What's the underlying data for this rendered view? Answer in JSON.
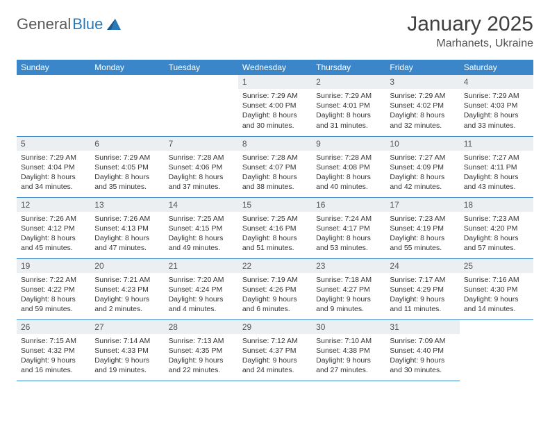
{
  "logo": {
    "general": "General",
    "blue": "Blue"
  },
  "title": "January 2025",
  "location": "Marhanets, Ukraine",
  "colors": {
    "header_bg": "#3a86c8",
    "header_text": "#ffffff",
    "daynum_bg": "#eceff1",
    "border": "#3a86c8",
    "logo_gray": "#5a5a5a",
    "logo_blue": "#2a7ab8"
  },
  "weekdays": [
    "Sunday",
    "Monday",
    "Tuesday",
    "Wednesday",
    "Thursday",
    "Friday",
    "Saturday"
  ],
  "leading_blanks": 3,
  "days": [
    {
      "n": "1",
      "sunrise": "7:29 AM",
      "sunset": "4:00 PM",
      "dl_h": "8",
      "dl_m": "30"
    },
    {
      "n": "2",
      "sunrise": "7:29 AM",
      "sunset": "4:01 PM",
      "dl_h": "8",
      "dl_m": "31"
    },
    {
      "n": "3",
      "sunrise": "7:29 AM",
      "sunset": "4:02 PM",
      "dl_h": "8",
      "dl_m": "32"
    },
    {
      "n": "4",
      "sunrise": "7:29 AM",
      "sunset": "4:03 PM",
      "dl_h": "8",
      "dl_m": "33"
    },
    {
      "n": "5",
      "sunrise": "7:29 AM",
      "sunset": "4:04 PM",
      "dl_h": "8",
      "dl_m": "34"
    },
    {
      "n": "6",
      "sunrise": "7:29 AM",
      "sunset": "4:05 PM",
      "dl_h": "8",
      "dl_m": "35"
    },
    {
      "n": "7",
      "sunrise": "7:28 AM",
      "sunset": "4:06 PM",
      "dl_h": "8",
      "dl_m": "37"
    },
    {
      "n": "8",
      "sunrise": "7:28 AM",
      "sunset": "4:07 PM",
      "dl_h": "8",
      "dl_m": "38"
    },
    {
      "n": "9",
      "sunrise": "7:28 AM",
      "sunset": "4:08 PM",
      "dl_h": "8",
      "dl_m": "40"
    },
    {
      "n": "10",
      "sunrise": "7:27 AM",
      "sunset": "4:09 PM",
      "dl_h": "8",
      "dl_m": "42"
    },
    {
      "n": "11",
      "sunrise": "7:27 AM",
      "sunset": "4:11 PM",
      "dl_h": "8",
      "dl_m": "43"
    },
    {
      "n": "12",
      "sunrise": "7:26 AM",
      "sunset": "4:12 PM",
      "dl_h": "8",
      "dl_m": "45"
    },
    {
      "n": "13",
      "sunrise": "7:26 AM",
      "sunset": "4:13 PM",
      "dl_h": "8",
      "dl_m": "47"
    },
    {
      "n": "14",
      "sunrise": "7:25 AM",
      "sunset": "4:15 PM",
      "dl_h": "8",
      "dl_m": "49"
    },
    {
      "n": "15",
      "sunrise": "7:25 AM",
      "sunset": "4:16 PM",
      "dl_h": "8",
      "dl_m": "51"
    },
    {
      "n": "16",
      "sunrise": "7:24 AM",
      "sunset": "4:17 PM",
      "dl_h": "8",
      "dl_m": "53"
    },
    {
      "n": "17",
      "sunrise": "7:23 AM",
      "sunset": "4:19 PM",
      "dl_h": "8",
      "dl_m": "55"
    },
    {
      "n": "18",
      "sunrise": "7:23 AM",
      "sunset": "4:20 PM",
      "dl_h": "8",
      "dl_m": "57"
    },
    {
      "n": "19",
      "sunrise": "7:22 AM",
      "sunset": "4:22 PM",
      "dl_h": "8",
      "dl_m": "59"
    },
    {
      "n": "20",
      "sunrise": "7:21 AM",
      "sunset": "4:23 PM",
      "dl_h": "9",
      "dl_m": "2"
    },
    {
      "n": "21",
      "sunrise": "7:20 AM",
      "sunset": "4:24 PM",
      "dl_h": "9",
      "dl_m": "4"
    },
    {
      "n": "22",
      "sunrise": "7:19 AM",
      "sunset": "4:26 PM",
      "dl_h": "9",
      "dl_m": "6"
    },
    {
      "n": "23",
      "sunrise": "7:18 AM",
      "sunset": "4:27 PM",
      "dl_h": "9",
      "dl_m": "9"
    },
    {
      "n": "24",
      "sunrise": "7:17 AM",
      "sunset": "4:29 PM",
      "dl_h": "9",
      "dl_m": "11"
    },
    {
      "n": "25",
      "sunrise": "7:16 AM",
      "sunset": "4:30 PM",
      "dl_h": "9",
      "dl_m": "14"
    },
    {
      "n": "26",
      "sunrise": "7:15 AM",
      "sunset": "4:32 PM",
      "dl_h": "9",
      "dl_m": "16"
    },
    {
      "n": "27",
      "sunrise": "7:14 AM",
      "sunset": "4:33 PM",
      "dl_h": "9",
      "dl_m": "19"
    },
    {
      "n": "28",
      "sunrise": "7:13 AM",
      "sunset": "4:35 PM",
      "dl_h": "9",
      "dl_m": "22"
    },
    {
      "n": "29",
      "sunrise": "7:12 AM",
      "sunset": "4:37 PM",
      "dl_h": "9",
      "dl_m": "24"
    },
    {
      "n": "30",
      "sunrise": "7:10 AM",
      "sunset": "4:38 PM",
      "dl_h": "9",
      "dl_m": "27"
    },
    {
      "n": "31",
      "sunrise": "7:09 AM",
      "sunset": "4:40 PM",
      "dl_h": "9",
      "dl_m": "30"
    }
  ],
  "labels": {
    "sunrise": "Sunrise:",
    "sunset": "Sunset:",
    "daylight": "Daylight:",
    "hours": "hours",
    "and": "and",
    "minutes": "minutes."
  }
}
